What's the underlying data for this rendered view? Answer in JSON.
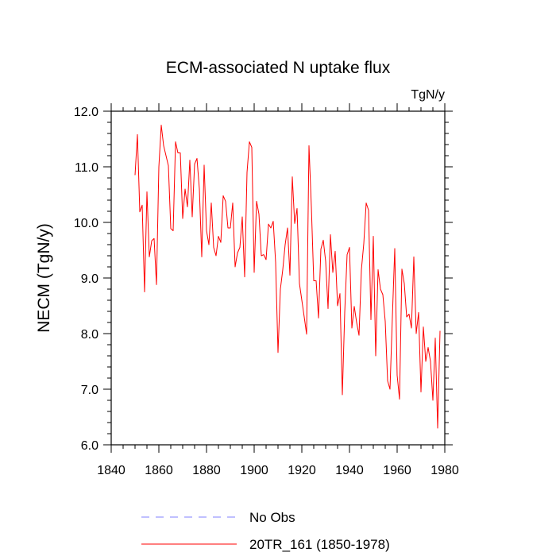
{
  "chart_data": {
    "type": "line",
    "title": "ECM-associated N uptake flux",
    "units": "TgN/y",
    "xlabel": "",
    "ylabel": "NECM  (TgN/y)",
    "xlim": [
      1840,
      1980
    ],
    "ylim": [
      6.0,
      12.0
    ],
    "x_ticks": [
      1840,
      1860,
      1880,
      1900,
      1920,
      1940,
      1960,
      1980
    ],
    "y_ticks": [
      "6.0",
      "7.0",
      "8.0",
      "9.0",
      "10.0",
      "11.0",
      "12.0"
    ],
    "legend": {
      "placement": "below-plot",
      "entries": [
        {
          "label": "No Obs",
          "style": "dashed",
          "color": "#8080ff"
        },
        {
          "label": "20TR_161 (1850-1978)",
          "style": "solid",
          "color": "#ff0000"
        }
      ]
    },
    "series": [
      {
        "name": "20TR_161 (1850-1978)",
        "color": "#ff0000",
        "x_start": 1850,
        "x_step": 1,
        "values": [
          10.85,
          11.58,
          10.19,
          10.31,
          8.75,
          10.55,
          9.38,
          9.67,
          9.71,
          8.88,
          11.0,
          11.75,
          11.38,
          11.2,
          11.02,
          9.89,
          9.85,
          11.45,
          11.25,
          11.25,
          10.07,
          10.6,
          10.28,
          11.12,
          10.1,
          11.05,
          11.15,
          10.6,
          9.38,
          11.03,
          9.85,
          9.6,
          10.35,
          9.55,
          9.4,
          9.75,
          9.64,
          10.48,
          10.38,
          9.9,
          9.9,
          10.35,
          9.2,
          9.45,
          9.55,
          10.1,
          9.02,
          10.9,
          11.45,
          11.35,
          9.1,
          10.38,
          10.15,
          9.4,
          9.42,
          9.33,
          9.97,
          9.9,
          10.02,
          9.28,
          7.66,
          8.8,
          9.15,
          9.6,
          9.9,
          9.05,
          10.82,
          9.98,
          10.25,
          8.9,
          8.6,
          8.3,
          7.99,
          11.38,
          10.28,
          8.95,
          8.95,
          8.28,
          9.52,
          9.68,
          9.3,
          8.45,
          9.78,
          9.1,
          9.48,
          8.5,
          8.72,
          6.9,
          8.38,
          9.42,
          9.55,
          8.1,
          8.49,
          8.2,
          7.97,
          9.15,
          9.62,
          10.35,
          10.22,
          8.25,
          9.75,
          7.6,
          9.15,
          8.8,
          8.7,
          8.22,
          7.15,
          7.0,
          8.3,
          9.53,
          7.25,
          6.82,
          9.16,
          8.9,
          8.3,
          8.35,
          8.1,
          9.38,
          8.0,
          8.38,
          6.95,
          8.12,
          7.5,
          7.75,
          7.5,
          6.8,
          7.92,
          6.3,
          8.05
        ]
      }
    ]
  }
}
